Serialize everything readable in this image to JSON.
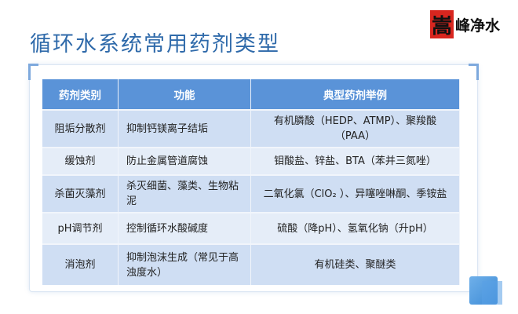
{
  "title": "循环水系统常用药剂类型",
  "logo": {
    "seal_char": "嵩",
    "text": "峰净水"
  },
  "table": {
    "headers": [
      "药剂类别",
      "功能",
      "典型药剂举例"
    ],
    "rows": [
      [
        "阻垢分散剂",
        "抑制钙镁离子结垢",
        "有机膦酸（HEDP、ATMP）、聚羧酸（PAA）"
      ],
      [
        "缓蚀剂",
        "防止金属管道腐蚀",
        "钼酸盐、锌盐、BTA（苯并三氮唑）"
      ],
      [
        "杀菌灭藻剂",
        "杀灭细菌、藻类、生物粘泥",
        "二氧化氯（ClO₂ ）、异噻唑啉酮、季铵盐"
      ],
      [
        "pH调节剂",
        "控制循环水酸碱度",
        "硫酸（降pH）、氢氧化钠（升pH）"
      ],
      [
        "消泡剂",
        "抑制泡沫生成（常见于高浊度水）",
        "有机硅类、聚醚类"
      ]
    ]
  },
  "colors": {
    "title": "#2f6aaa",
    "header_bg": "#5a93d8",
    "row_odd": "#cfdef3",
    "row_even": "#e5edf8",
    "seal": "#d8261f"
  }
}
